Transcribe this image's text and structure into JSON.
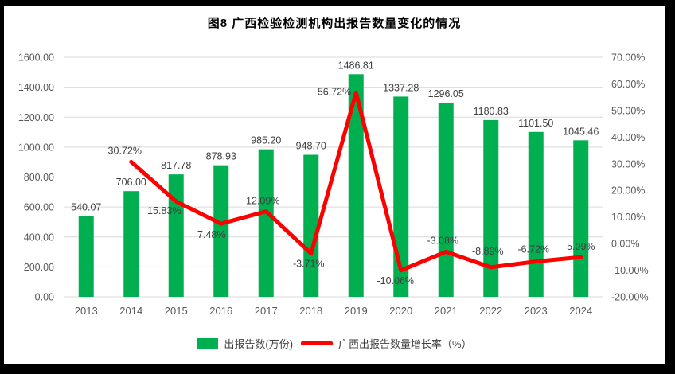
{
  "title": "图8  广西检验检测机构出报告数量变化的情况",
  "legend": {
    "bar_label": "出报告数(万份)",
    "line_label": "广西出报告数量增长率（%）"
  },
  "colors": {
    "bar": "#00B050",
    "line": "#FF0000",
    "grid": "#D9D9D9",
    "axis_text": "#595959",
    "data_label": "#404040",
    "title_text": "#000000",
    "frame": "#000000",
    "background": "#FFFFFF"
  },
  "chart_data": {
    "type": "combo-bar-line",
    "title": "图8  广西检验检测机构出报告数量变化的情况",
    "categories": [
      "2013",
      "2014",
      "2015",
      "2016",
      "2017",
      "2018",
      "2019",
      "2020",
      "2021",
      "2022",
      "2023",
      "2024"
    ],
    "series": [
      {
        "name": "出报告数(万份)",
        "type": "bar",
        "axis": "left",
        "color": "#00B050",
        "values": [
          540.07,
          706.0,
          817.78,
          878.93,
          985.2,
          948.7,
          1486.81,
          1337.28,
          1296.05,
          1180.83,
          1101.5,
          1045.46
        ],
        "labels": [
          "540.07",
          "706.00",
          "817.78",
          "878.93",
          "985.20",
          "948.70",
          "1486.81",
          "1337.28",
          "1296.05",
          "1180.83",
          "1101.50",
          "1045.46"
        ]
      },
      {
        "name": "广西出报告数量增长率（%）",
        "type": "line",
        "axis": "right",
        "color": "#FF0000",
        "values": [
          null,
          30.72,
          15.83,
          7.48,
          12.09,
          -3.71,
          56.72,
          -10.06,
          -3.08,
          -8.89,
          -6.72,
          -5.09
        ],
        "labels": [
          null,
          "30.72%",
          "15.83%",
          "7.48%",
          "12.09%",
          "-3.71%",
          "56.72%",
          "-10.06%",
          "-3.08%",
          "-8.89%",
          "-6.72%",
          "-5.09%"
        ],
        "label_anchors": [
          null,
          "middle",
          "middle",
          "middle",
          "middle",
          "middle",
          "end",
          "middle",
          "middle",
          "middle",
          "middle",
          "middle"
        ],
        "label_offsets": [
          null,
          [
            -8,
            -10
          ],
          [
            -15,
            16
          ],
          [
            -12,
            18
          ],
          [
            -4,
            -9
          ],
          [
            -3,
            17
          ],
          [
            -6,
            3
          ],
          [
            -7,
            17
          ],
          [
            -4,
            -10
          ],
          [
            -4,
            -16
          ],
          [
            -3,
            -11
          ],
          [
            -2,
            -9
          ]
        ]
      }
    ],
    "left_axis": {
      "min": 0,
      "max": 1600,
      "step": 200,
      "ticks": [
        "0.00",
        "200.00",
        "400.00",
        "600.00",
        "800.00",
        "1000.00",
        "1200.00",
        "1400.00",
        "1600.00"
      ]
    },
    "right_axis": {
      "min": -20,
      "max": 70,
      "step": 10,
      "ticks": [
        "-20.00%",
        "-10.00%",
        "0.00%",
        "10.00%",
        "20.00%",
        "30.00%",
        "40.00%",
        "50.00%",
        "60.00%",
        "70.00%"
      ]
    },
    "grid": "horizontal",
    "legend_position": "bottom"
  }
}
